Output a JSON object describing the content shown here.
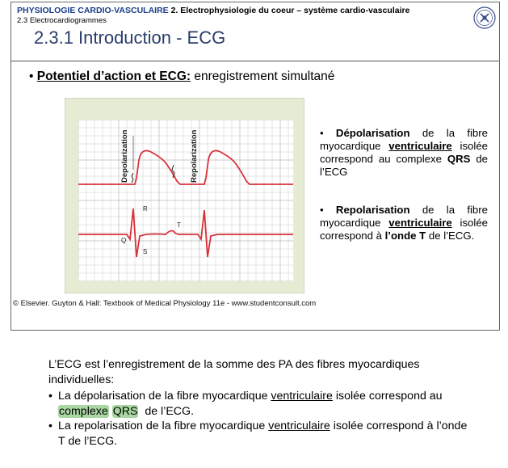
{
  "header": {
    "course": "PHYSIOLOGIE CARDIO-VASCULAIRE",
    "chapter": "2. Electrophysiologie du coeur – système cardio-vasculaire",
    "section": "2.3 Electrocardiogrammes",
    "title": "2.3.1 Introduction - ECG"
  },
  "main_bullet": {
    "bold": "Potentiel d’action et ECG:",
    "rest": " enregistrement simultané"
  },
  "figure": {
    "label_depolarization": "Depolarization",
    "label_repolarization": "Repolarization",
    "wave_R": "R",
    "wave_Q": "Q",
    "wave_S": "S",
    "wave_T": "T",
    "credit": "© Elsevier. Guyton & Hall: Textbook of Medical Physiology 11e - www.studentconsult.com"
  },
  "side_bullets": {
    "b1_bold": "Dépolarisation",
    "b1_text1": " de la fibre myocardique ",
    "b1_ul": "ventriculaire",
    "b1_text2": " isolée correspond au complexe ",
    "b1_qrs": "QRS",
    "b1_text3": " de l’ECG",
    "b2_bold": "Repolarisation",
    "b2_text1": " de la fibre myocardique ",
    "b2_ul": "ventriculaire",
    "b2_text2": " isolée correspond à ",
    "b2_bold2": "l’onde T",
    "b2_text3": " de l’ECG."
  },
  "notes": {
    "intro": "L’ECG est l’enregistrement de la somme des PA des fibres myocardiques individuelles:",
    "i1_a": "La dépolarisation de la fibre myocardique ",
    "i1_ul": "ventriculaire",
    "i1_b": " isolée correspond au ",
    "i1_hl1": "complexe",
    "i1_sp": " ",
    "i1_hl2": "QRS",
    "i1_c": "  de l’ECG.",
    "i2_a": "La repolarisation de la fibre myocardique ",
    "i2_ul": "ventriculaire",
    "i2_b": " isolée correspond à l’onde T de l’ECG."
  },
  "colors": {
    "trace": "#d9313b",
    "grid": "#aaaaaa",
    "figure_bg": "#e6ecd3",
    "highlight": "#a9d6a3",
    "title": "#2a3d6b",
    "course": "#1a3e8c"
  },
  "icons": {
    "logo": "university-seal-icon",
    "bullet": "bullet-dot"
  }
}
